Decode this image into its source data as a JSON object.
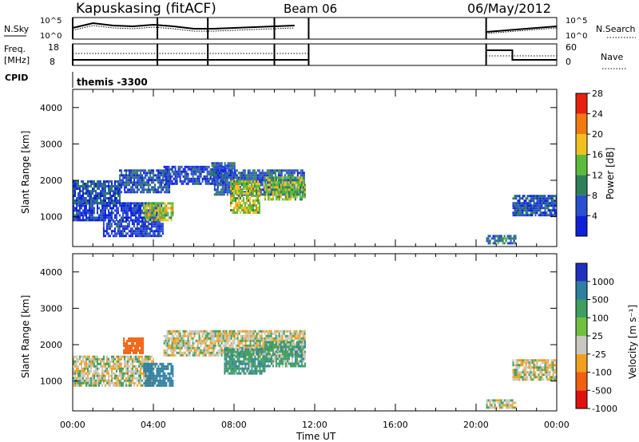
{
  "header": {
    "station": "Kapuskasing (fitACF)",
    "beam": "Beam 06",
    "date": "06/May/2012"
  },
  "time_axis": {
    "label": "Time UT",
    "ticks": [
      "00:00",
      "04:00",
      "08:00",
      "12:00",
      "16:00",
      "20:00",
      "00:00"
    ]
  },
  "nsky_panel": {
    "left_label": "N.Sky",
    "right_label": "N.Search",
    "left_ticks": [
      "10^5",
      "10^0"
    ],
    "right_ticks": [
      "10^5",
      "10^0"
    ]
  },
  "freq_panel": {
    "left_label_1": "Freq.",
    "left_label_2": "[MHz]",
    "right_label": "Nave",
    "left_ticks": [
      "18",
      "8"
    ],
    "right_ticks": [
      "60",
      "0"
    ]
  },
  "cpid_panel": {
    "label": "CPID",
    "value": "themis -3300"
  },
  "power_panel": {
    "ylabel": "Slant Range [km]",
    "yticks": [
      "1000",
      "2000",
      "3000",
      "4000"
    ],
    "colorbar_label": "Power [dB]",
    "colorbar_ticks": [
      "4",
      "8",
      "12",
      "16",
      "20",
      "24",
      "28"
    ],
    "colors": [
      "#1020d8",
      "#2a4fd0",
      "#2f7f5a",
      "#5cbb3a",
      "#f0c020",
      "#f07a10",
      "#e82010"
    ]
  },
  "velocity_panel": {
    "ylabel": "Slant Range [km]",
    "yticks": [
      "1000",
      "2000",
      "3000",
      "4000"
    ],
    "colorbar_label": "Velocity [m s⁻¹]",
    "colorbar_ticks": [
      "1000",
      "500",
      "100",
      "25",
      "-25",
      "-100",
      "-500",
      "-1000"
    ],
    "colors": [
      "#2030c0",
      "#2f7fa0",
      "#3f9f5f",
      "#70c040",
      "#c8c8c0",
      "#f0a020",
      "#f06010",
      "#e01010"
    ]
  },
  "chart_data": {
    "type": "heatmap",
    "x_unit": "hours UT",
    "xlim": [
      0,
      24
    ],
    "ylim": [
      180,
      4500
    ],
    "panels": [
      {
        "name": "power",
        "unit": "dB",
        "regions": [
          {
            "t": [
              0.0,
              4.5
            ],
            "r": [
              900,
              1400
            ],
            "v": 6
          },
          {
            "t": [
              0.0,
              2.3
            ],
            "r": [
              1400,
              2000
            ],
            "v": 8
          },
          {
            "t": [
              2.3,
              4.8
            ],
            "r": [
              1700,
              2300
            ],
            "v": 8
          },
          {
            "t": [
              1.5,
              4.5
            ],
            "r": [
              500,
              900
            ],
            "v": 6
          },
          {
            "t": [
              3.5,
              5.0
            ],
            "r": [
              900,
              1400
            ],
            "v": 18
          },
          {
            "t": [
              4.5,
              7.5
            ],
            "r": [
              1900,
              2400
            ],
            "v": 7
          },
          {
            "t": [
              6.8,
              8.0
            ],
            "r": [
              2100,
              2500
            ],
            "v": 8
          },
          {
            "t": [
              7.0,
              11.5
            ],
            "r": [
              1600,
              2300
            ],
            "v": 9
          },
          {
            "t": [
              7.8,
              9.3
            ],
            "r": [
              1100,
              2000
            ],
            "v": 18
          },
          {
            "t": [
              9.5,
              11.5
            ],
            "r": [
              1500,
              2100
            ],
            "v": 16
          },
          {
            "t": [
              20.5,
              22.0
            ],
            "r": [
              250,
              500
            ],
            "v": 10
          },
          {
            "t": [
              21.8,
              24.0
            ],
            "r": [
              1050,
              1600
            ],
            "v": 8
          }
        ]
      },
      {
        "name": "velocity",
        "unit": "m/s",
        "regions": [
          {
            "t": [
              0.0,
              4.0
            ],
            "r": [
              900,
              1700
            ],
            "v": 0
          },
          {
            "t": [
              2.5,
              3.5
            ],
            "r": [
              1800,
              2200
            ],
            "v": -300
          },
          {
            "t": [
              3.5,
              5.0
            ],
            "r": [
              900,
              1500
            ],
            "v": 400
          },
          {
            "t": [
              4.5,
              11.5
            ],
            "r": [
              1700,
              2400
            ],
            "v": 0
          },
          {
            "t": [
              7.5,
              9.5
            ],
            "r": [
              1200,
              1900
            ],
            "v": 80
          },
          {
            "t": [
              9.5,
              11.5
            ],
            "r": [
              1400,
              2100
            ],
            "v": 60
          },
          {
            "t": [
              20.5,
              22.0
            ],
            "r": [
              250,
              500
            ],
            "v": 0
          },
          {
            "t": [
              21.8,
              24.0
            ],
            "r": [
              1050,
              1600
            ],
            "v": 0
          }
        ]
      }
    ]
  }
}
